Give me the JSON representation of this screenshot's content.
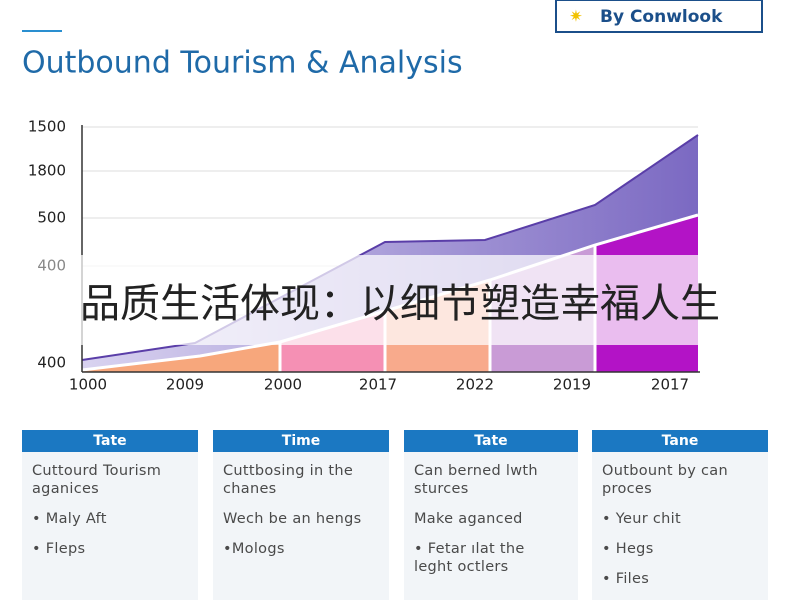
{
  "brand": "By Conwlook",
  "title": "Outbound Tourism & Analysis",
  "axis": {
    "y_labels": [
      "1500",
      "1800",
      "500",
      "400",
      "400"
    ],
    "x_labels": [
      "1000",
      "2009",
      "2000",
      "2017",
      "2022",
      "2019",
      "2017"
    ]
  },
  "banner": "品质生活体现：以细节塑造幸福人生",
  "cards": [
    {
      "header": "Tate",
      "items": [
        "Cuttourd Tourism aganices",
        "• Maly Aft",
        "• Fleps"
      ]
    },
    {
      "header": "Time",
      "items": [
        "Cuttbosing in the chanes",
        "Wech be an hengs",
        "•Mologs"
      ]
    },
    {
      "header": "Tate",
      "items": [
        "Can berned lwth sturces",
        "Make aganced",
        "• Fetar ılat the leght octlers"
      ]
    },
    {
      "header": "Tane",
      "items": [
        "Outbount by can proces",
        "• Yeur chit",
        "• Hegs",
        "• Files"
      ]
    }
  ]
}
